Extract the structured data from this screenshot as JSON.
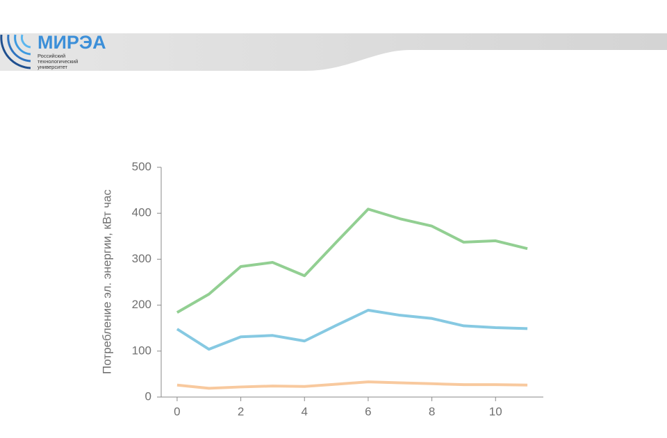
{
  "logo": {
    "name": "МИРЭА",
    "lines": [
      "Российский",
      "технологический",
      "университет"
    ]
  },
  "chart_data": {
    "type": "line",
    "y_label": "Потребление эл. энергии, кВт час",
    "x": [
      0,
      1,
      2,
      3,
      4,
      5,
      6,
      7,
      8,
      9,
      10,
      11
    ],
    "xlim": [
      -0.5,
      11.5
    ],
    "xticks": [
      0,
      2,
      4,
      6,
      8,
      10
    ],
    "ylim": [
      0,
      500
    ],
    "yticks": [
      0,
      100,
      200,
      300,
      400,
      500
    ],
    "series": [
      {
        "color": "#92cf92",
        "values": [
          184,
          224,
          284,
          293,
          264,
          337,
          409,
          388,
          372,
          337,
          340,
          323
        ]
      },
      {
        "color": "#86c9e2",
        "values": [
          148,
          104,
          131,
          134,
          122,
          156,
          189,
          178,
          171,
          155,
          151,
          149
        ]
      },
      {
        "color": "#f8c99e",
        "values": [
          26,
          19,
          22,
          24,
          23,
          28,
          33,
          31,
          29,
          27,
          27,
          26
        ]
      }
    ]
  }
}
